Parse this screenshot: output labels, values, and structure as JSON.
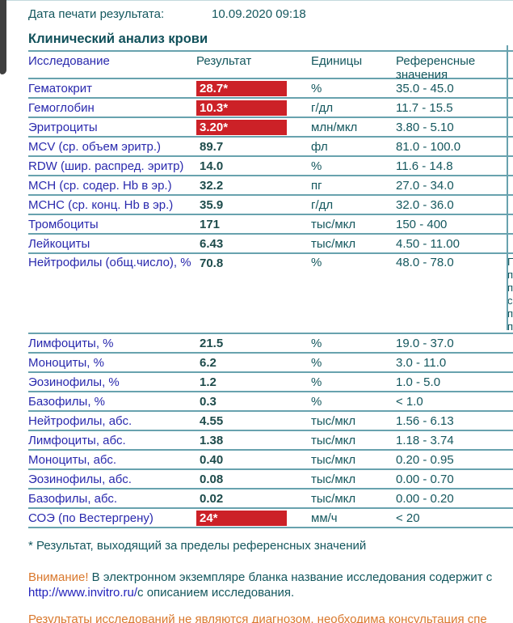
{
  "page": {
    "print_date_label": "Дата печати результата:",
    "print_date_value": "10.09.2020 09:18",
    "section_title": "Клинический анализ крови"
  },
  "table": {
    "headers": {
      "test": "Исследование",
      "result": "Результат",
      "units": "Единицы",
      "reference": "Референсные значения"
    },
    "rows": [
      {
        "name": "Гематокрит",
        "result": "28.7*",
        "flag": true,
        "units": "%",
        "ref": "35.0 - 45.0"
      },
      {
        "name": "Гемоглобин",
        "result": "10.3*",
        "flag": true,
        "units": "г/дл",
        "ref": "11.7 - 15.5"
      },
      {
        "name": "Эритроциты",
        "result": "3.20*",
        "flag": true,
        "units": "млн/мкл",
        "ref": "3.80 - 5.10"
      },
      {
        "name": "MCV (ср. объем эритр.)",
        "result": "89.7",
        "flag": false,
        "units": "фл",
        "ref": "81.0 - 100.0"
      },
      {
        "name": "RDW (шир. распред. эритр)",
        "result": "14.0",
        "flag": false,
        "units": "%",
        "ref": "11.6 - 14.8"
      },
      {
        "name": "MCH (ср. содер. Hb в эр.)",
        "result": "32.2",
        "flag": false,
        "units": "пг",
        "ref": "27.0 - 34.0"
      },
      {
        "name": "MCHC (ср. конц. Hb в эр.)",
        "result": "35.9",
        "flag": false,
        "units": "г/дл",
        "ref": "32.0 - 36.0"
      },
      {
        "name": "Тромбоциты",
        "result": "171",
        "flag": false,
        "units": "тыс/мкл",
        "ref": "150 - 400"
      },
      {
        "name": "Лейкоциты",
        "result": "6.43",
        "flag": false,
        "units": "тыс/мкл",
        "ref": "4.50 - 11.00"
      },
      {
        "name": "Нейтрофилы (общ.число), %",
        "result": "70.8",
        "flag": false,
        "units": "%",
        "ref": "48.0 - 78.0",
        "tall": true,
        "comment_fragments": [
          "П",
          "п",
          "п",
          "с",
          "п",
          "п"
        ]
      },
      {
        "name": "Лимфоциты, %",
        "result": "21.5",
        "flag": false,
        "units": "%",
        "ref": "19.0 - 37.0"
      },
      {
        "name": "Моноциты, %",
        "result": "6.2",
        "flag": false,
        "units": "%",
        "ref": "3.0 - 11.0"
      },
      {
        "name": "Эозинофилы, %",
        "result": "1.2",
        "flag": false,
        "units": "%",
        "ref": "1.0 - 5.0"
      },
      {
        "name": "Базофилы, %",
        "result": "0.3",
        "flag": false,
        "units": "%",
        "ref": "< 1.0"
      },
      {
        "name": "Нейтрофилы, абс.",
        "result": "4.55",
        "flag": false,
        "units": "тыс/мкл",
        "ref": "1.56 - 6.13"
      },
      {
        "name": "Лимфоциты, абс.",
        "result": "1.38",
        "flag": false,
        "units": "тыс/мкл",
        "ref": "1.18 - 3.74"
      },
      {
        "name": "Моноциты, абс.",
        "result": "0.40",
        "flag": false,
        "units": "тыс/мкл",
        "ref": "0.20 - 0.95"
      },
      {
        "name": "Эозинофилы, абс.",
        "result": "0.08",
        "flag": false,
        "units": "тыс/мкл",
        "ref": "0.00 - 0.70"
      },
      {
        "name": "Базофилы, абс.",
        "result": "0.02",
        "flag": false,
        "units": "тыс/мкл",
        "ref": "0.00 - 0.20"
      },
      {
        "name": "СОЭ (по Вестергрену)",
        "result": "24*",
        "flag": true,
        "units": "мм/ч",
        "ref": "< 20"
      }
    ]
  },
  "footnotes": {
    "asterisk_note": "* Результат, выходящий за пределы референсных значений",
    "attention_label": "Внимание!",
    "attention_text": " В электронном экземпляре бланка название исследования содержит с",
    "link_url": "http://www.invitro.ru/",
    "link_suffix": "с описанием исследования.",
    "disclaimer": "Результаты исследований не являются диагнозом, необходима консультация спе"
  },
  "colors": {
    "flag_background": "#cc2127",
    "flag_text": "#ffffff",
    "row_line": "#68a2ae",
    "test_name_blue": "#2929ad",
    "teal_text": "#14575e",
    "warning_orange": "#d9782d",
    "link_blue": "#2222bb"
  }
}
